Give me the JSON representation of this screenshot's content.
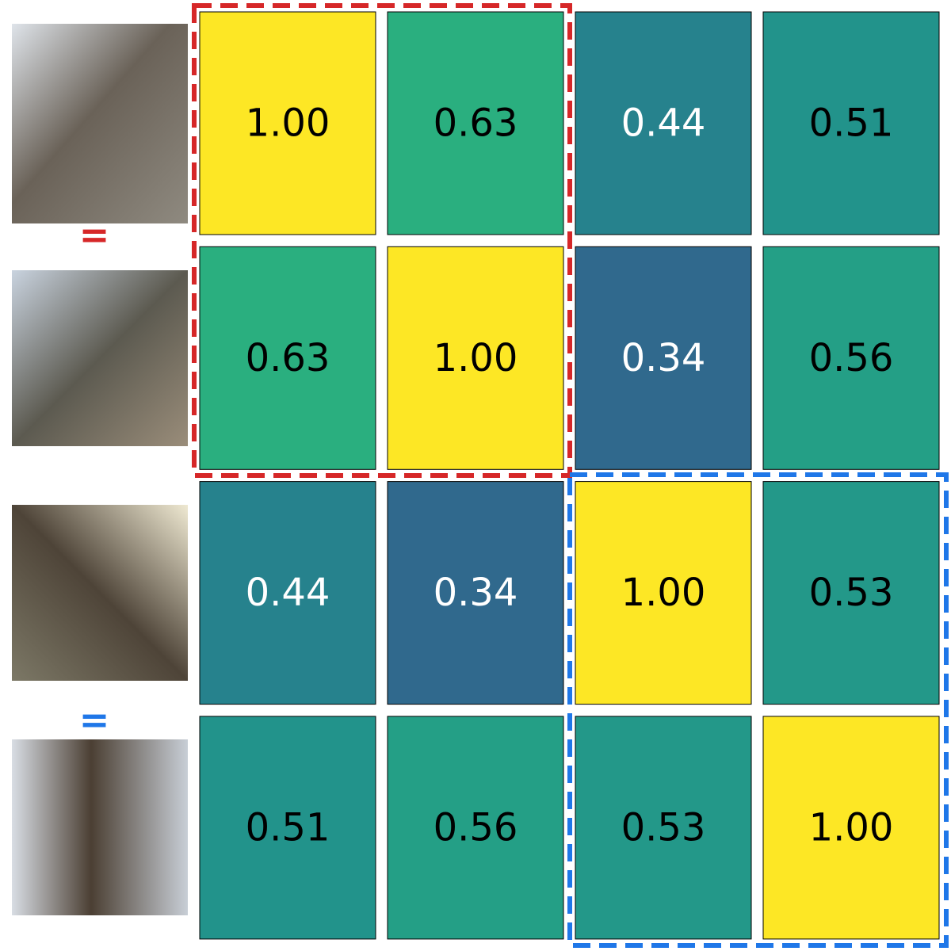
{
  "chart_data": {
    "type": "heatmap",
    "colormap": "viridis",
    "values": [
      [
        1,
        0.63,
        0.44,
        0.51
      ],
      [
        0.63,
        1,
        0.34,
        0.56
      ],
      [
        0.44,
        0.34,
        1,
        0.53
      ],
      [
        0.51,
        0.56,
        0.53,
        1
      ]
    ],
    "value_labels": [
      [
        "1.00",
        "0.63",
        "0.44",
        "0.51"
      ],
      [
        "0.63",
        "1.00",
        "0.34",
        "0.56"
      ],
      [
        "0.44",
        "0.34",
        "1.00",
        "0.53"
      ],
      [
        "0.51",
        "0.56",
        "0.53",
        "1.00"
      ]
    ],
    "annotations": [
      "=",
      "="
    ]
  }
}
